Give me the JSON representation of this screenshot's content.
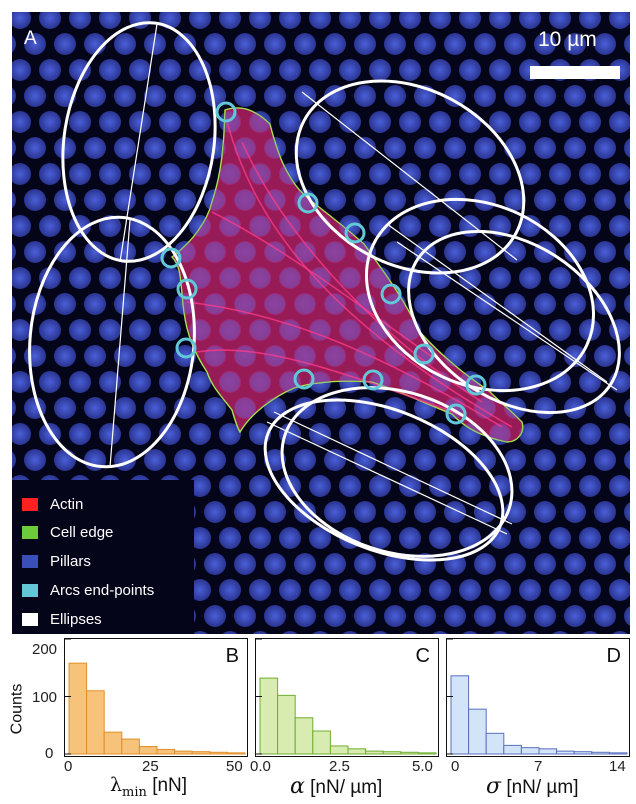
{
  "panel_a": {
    "letter": "A",
    "scale_bar_label": "10 µm",
    "legend": [
      {
        "label": "Actin",
        "color": "#ff2020"
      },
      {
        "label": "Cell edge",
        "color": "#6ccb3c"
      },
      {
        "label": "Pillars",
        "color": "#3a4fb8"
      },
      {
        "label": "Arcs end-points",
        "color": "#62c8d8"
      },
      {
        "label": "Ellipses",
        "color": "#ffffff"
      }
    ]
  },
  "histograms": {
    "y_label": "Counts",
    "y_ticks": [
      "200",
      "100",
      "0"
    ],
    "panels": [
      {
        "letter": "B",
        "x_ticks": [
          "0",
          "25",
          "50"
        ],
        "color": "#f7c27a",
        "edge": "#e0902a"
      },
      {
        "letter": "C",
        "x_ticks": [
          "0.0",
          "2.5",
          "5.0"
        ],
        "color": "#d8ebb0",
        "edge": "#6fae2f"
      },
      {
        "letter": "D",
        "x_ticks": [
          "0",
          "7",
          "14"
        ],
        "color": "#d2e4f7",
        "edge": "#5a6fbf"
      }
    ],
    "x_labels": {
      "b": {
        "symbol": "λ",
        "subscript": "min",
        "unit": "[nN]"
      },
      "c": {
        "symbol": "α",
        "unit": "[nN/ µm]"
      },
      "d": {
        "symbol": "σ",
        "unit": "[nN/ µm]"
      }
    }
  },
  "chart_data": [
    {
      "type": "bar",
      "categories": [
        "0",
        "5",
        "10",
        "15",
        "20",
        "25",
        "30",
        "35",
        "40",
        "45"
      ],
      "values": [
        158,
        110,
        38,
        26,
        13,
        8,
        5,
        4,
        3,
        2
      ],
      "xlim": [
        0,
        50
      ],
      "ylim": [
        0,
        200
      ]
    },
    {
      "type": "bar",
      "categories": [
        "0.0",
        "0.5",
        "1.0",
        "1.5",
        "2.0",
        "2.5",
        "3.0",
        "3.5",
        "4.0",
        "4.5"
      ],
      "values": [
        132,
        102,
        63,
        40,
        14,
        9,
        5,
        4,
        3,
        2
      ],
      "xlim": [
        0,
        5
      ],
      "ylim": [
        0,
        200
      ]
    },
    {
      "type": "bar",
      "categories": [
        "0",
        "1.4",
        "2.8",
        "4.2",
        "5.6",
        "7",
        "8.4",
        "9.8",
        "11.2",
        "12.6"
      ],
      "values": [
        136,
        78,
        36,
        15,
        11,
        9,
        5,
        4,
        3,
        2
      ],
      "xlim": [
        0,
        14
      ],
      "ylim": [
        0,
        200
      ]
    }
  ]
}
